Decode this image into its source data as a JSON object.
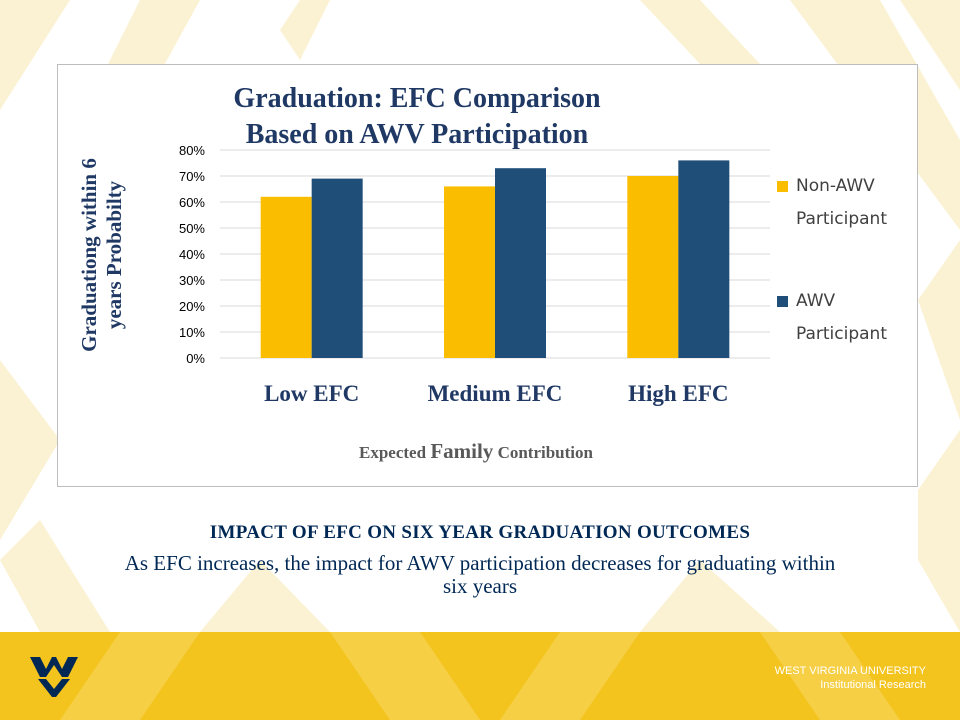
{
  "chart_data": {
    "type": "bar",
    "title": "Graduation:  EFC Comparison\nBased on AWV Participation",
    "title_lines": [
      "Graduation:  EFC Comparison",
      "Based on AWV Participation"
    ],
    "categories": [
      "Low EFC",
      "Medium EFC",
      "High EFC"
    ],
    "series": [
      {
        "name": "Non-AWV Participant",
        "name_lines": [
          "Non-AWV",
          "Participant"
        ],
        "color": "#fbbd00",
        "values": [
          0.62,
          0.66,
          0.7
        ]
      },
      {
        "name": "AWV Participant",
        "name_lines": [
          "AWV",
          "Participant"
        ],
        "color": "#1f4e79",
        "values": [
          0.69,
          0.73,
          0.76
        ]
      }
    ],
    "ylabel_lines": [
      "Graduationg  within 6",
      "years Probabilty"
    ],
    "xlabel_parts": [
      "Expected ",
      "Family",
      " Contribution"
    ],
    "ylim": [
      0,
      0.8
    ],
    "yticks": [
      0,
      0.1,
      0.2,
      0.3,
      0.4,
      0.5,
      0.6,
      0.7,
      0.8
    ],
    "ytick_labels": [
      "0%",
      "10%",
      "20%",
      "30%",
      "40%",
      "50%",
      "60%",
      "70%",
      "80%"
    ],
    "grid": true,
    "legend_position": "right"
  },
  "caption": {
    "title": "IMPACT OF EFC ON SIX YEAR GRADUATION OUTCOMES",
    "body": "As EFC increases, the impact for AWV participation decreases for graduating within six years"
  },
  "footer": {
    "university": "WEST VIRGINIA UNIVERSITY",
    "department": "Institutional Research",
    "logo_icon": "wv-flying-logo-icon",
    "color": "#f3c31e"
  }
}
